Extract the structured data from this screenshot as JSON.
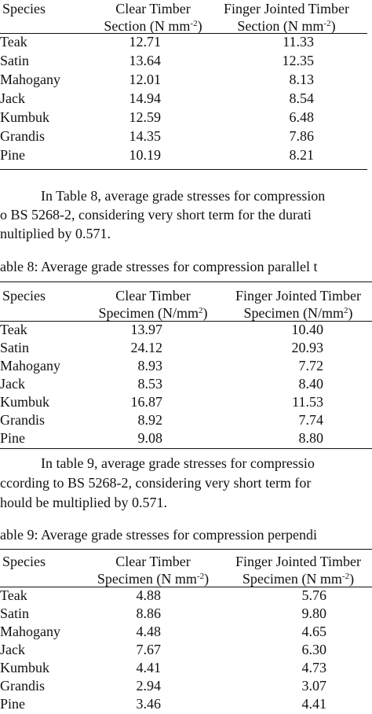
{
  "table7": {
    "headers": {
      "species": "Species",
      "clear_line1": "Clear Timber",
      "clear_line2": "Section (N mm",
      "clear_sup": "-2",
      "clear_end": ")",
      "finger_line1": "Finger Jointed Timber",
      "finger_line2": "Section (N mm",
      "finger_sup": "-2",
      "finger_end": ")"
    },
    "rows": [
      {
        "species": "Teak",
        "clear": "12.71",
        "finger": "11.33"
      },
      {
        "species": "Satin",
        "clear": "13.64",
        "finger": "12.35"
      },
      {
        "species": "Mahogany",
        "clear": "12.01",
        "finger": "8.13"
      },
      {
        "species": "Jack",
        "clear": "14.94",
        "finger": "8.54"
      },
      {
        "species": "Kumbuk",
        "clear": "12.59",
        "finger": "6.48"
      },
      {
        "species": "Grandis",
        "clear": "14.35",
        "finger": "7.86"
      },
      {
        "species": "Pine",
        "clear": "10.19",
        "finger": "8.21"
      }
    ]
  },
  "para1": {
    "line1": "In Table 8, average grade stresses for compression",
    "line2": "o BS 5268-2, considering very short term for the durati",
    "line3": "nultiplied by 0.571."
  },
  "table8": {
    "caption": "able 8: Average grade stresses for compression parallel t",
    "headers": {
      "species": "Species",
      "clear_line1": "Clear Timber",
      "clear_line2": "Specimen (N/mm",
      "clear_sup": "2",
      "clear_end": ")",
      "finger_line1": "Finger Jointed Timber",
      "finger_line2": "Specimen (N/mm",
      "finger_sup": "2",
      "finger_end": ")"
    },
    "rows": [
      {
        "species": "Teak",
        "clear": "13.97",
        "finger": "10.40"
      },
      {
        "species": "Satin",
        "clear": "24.12",
        "finger": "20.93"
      },
      {
        "species": "Mahogany",
        "clear": "8.93",
        "finger": "7.72"
      },
      {
        "species": "Jack",
        "clear": "8.53",
        "finger": "8.40"
      },
      {
        "species": "Kumbuk",
        "clear": "16.87",
        "finger": "11.53"
      },
      {
        "species": "Grandis",
        "clear": "8.92",
        "finger": "7.74"
      },
      {
        "species": "Pine",
        "clear": "9.08",
        "finger": "8.80"
      }
    ]
  },
  "para2": {
    "line1": "In table 9, average grade stresses for compressio",
    "line2": "ccording to BS 5268-2, considering very short term for",
    "line3": "hould be multiplied by 0.571."
  },
  "table9": {
    "caption": "able 9: Average grade stresses for compression perpendi",
    "headers": {
      "species": "Species",
      "clear_line1": "Clear Timber",
      "clear_line2": "Specimen (N mm",
      "clear_sup": "-2",
      "clear_end": ")",
      "finger_line1": "Finger Jointed Timber",
      "finger_line2": "Specimen (N mm",
      "finger_sup": "-2",
      "finger_end": ")"
    },
    "rows": [
      {
        "species": "Teak",
        "clear": "4.88",
        "finger": "5.76"
      },
      {
        "species": "Satin",
        "clear": "8.86",
        "finger": "9.80"
      },
      {
        "species": "Mahogany",
        "clear": "4.48",
        "finger": "4.65"
      },
      {
        "species": "Jack",
        "clear": "7.67",
        "finger": "6.30"
      },
      {
        "species": "Kumbuk",
        "clear": "4.41",
        "finger": "4.73"
      },
      {
        "species": "Grandis",
        "clear": "2.94",
        "finger": "3.07"
      },
      {
        "species": "Pine",
        "clear": "3.46",
        "finger": "4.41"
      }
    ]
  }
}
